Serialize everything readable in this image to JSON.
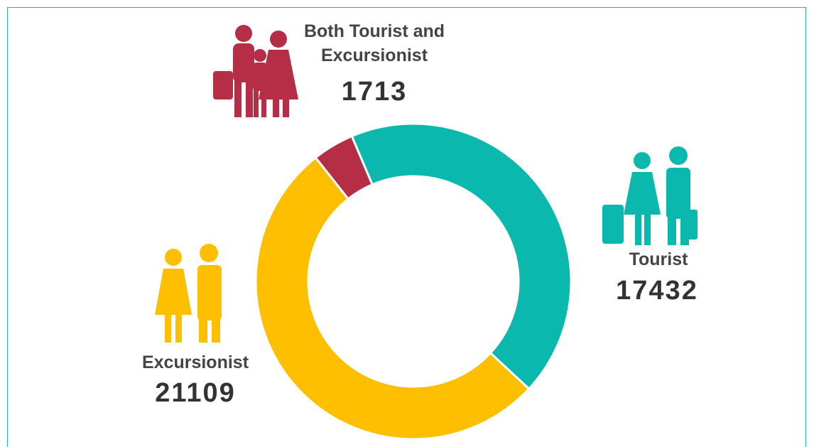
{
  "chart_data": {
    "type": "donut",
    "categories": [
      "Tourist",
      "Excursionist",
      "Both Tourist and Excursionist"
    ],
    "values": [
      17432,
      21109,
      1713
    ],
    "colors": [
      "#0ab8ad",
      "#fdbf00",
      "#b52e45"
    ]
  }
}
